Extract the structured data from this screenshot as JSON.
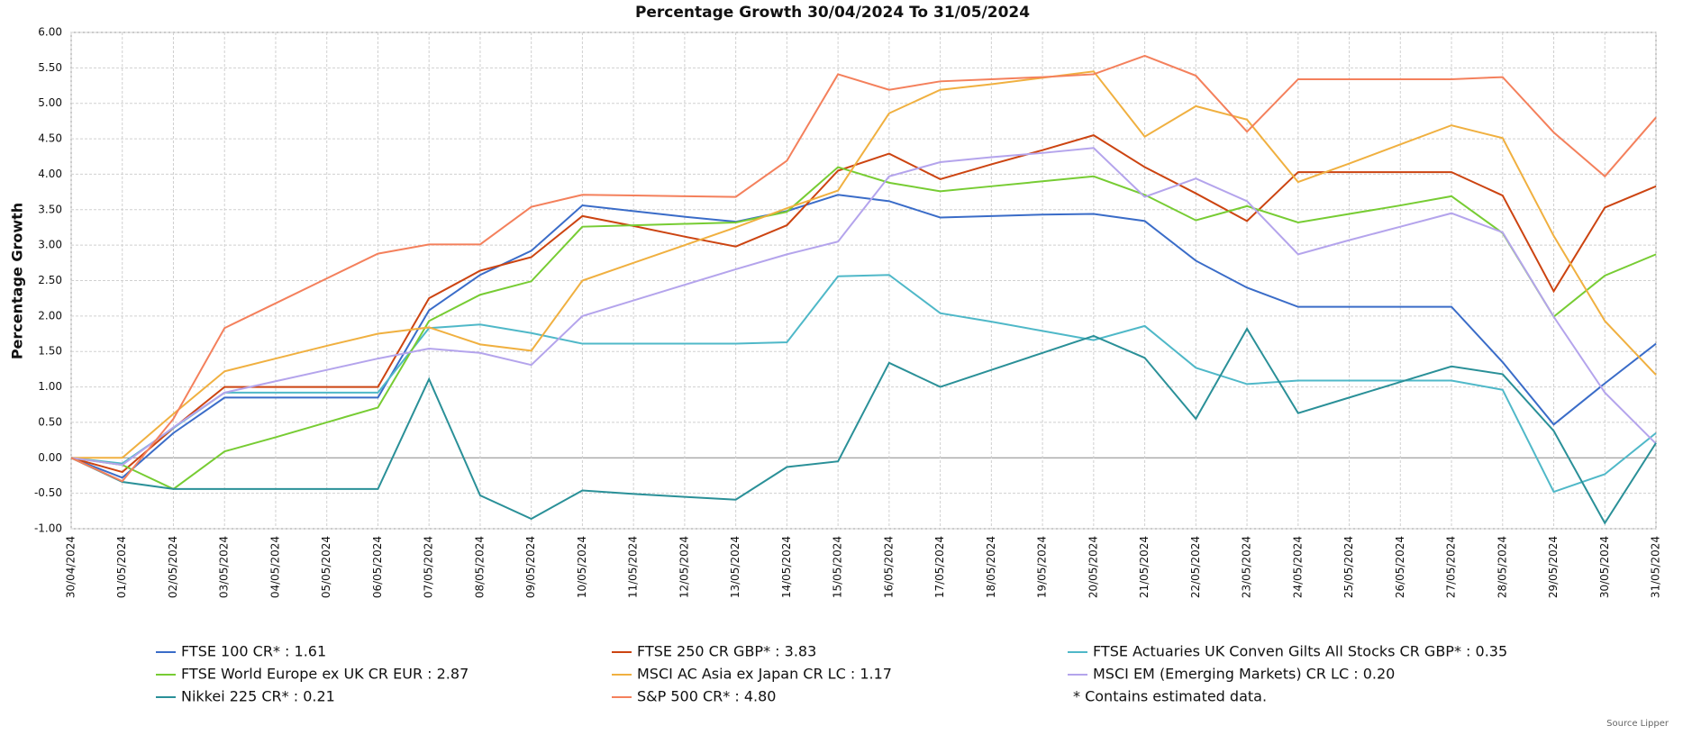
{
  "chart_data": {
    "type": "line",
    "title": "Percentage Growth 30/04/2024 To 31/05/2024",
    "y_label": "Percentage Growth",
    "categories": [
      "30/04/2024",
      "01/05/2024",
      "02/05/2024",
      "03/05/2024",
      "04/05/2024",
      "05/05/2024",
      "06/05/2024",
      "07/05/2024",
      "08/05/2024",
      "09/05/2024",
      "10/05/2024",
      "11/05/2024",
      "12/05/2024",
      "13/05/2024",
      "14/05/2024",
      "15/05/2024",
      "16/05/2024",
      "17/05/2024",
      "18/05/2024",
      "19/05/2024",
      "20/05/2024",
      "21/05/2024",
      "22/05/2024",
      "23/05/2024",
      "24/05/2024",
      "25/05/2024",
      "26/05/2024",
      "27/05/2024",
      "28/05/2024",
      "29/05/2024",
      "30/05/2024",
      "31/05/2024"
    ],
    "series": [
      {
        "name": "FTSE 100 CR* : 1.61",
        "color": "#3a6cc8",
        "values": [
          0,
          -0.28,
          0.35,
          0.85,
          0.85,
          0.85,
          0.85,
          2.08,
          2.58,
          2.92,
          3.56,
          3.48,
          3.4,
          3.33,
          3.48,
          3.71,
          3.62,
          3.39,
          3.41,
          3.43,
          3.44,
          3.34,
          2.78,
          2.4,
          2.13,
          2.13,
          2.13,
          2.13,
          1.35,
          0.47,
          1.05,
          1.61
        ]
      },
      {
        "name": "FTSE 250 CR GBP* : 3.83",
        "color": "#cc4411",
        "values": [
          0,
          -0.2,
          0.42,
          1.0,
          1.0,
          1.0,
          1.0,
          2.25,
          2.64,
          2.83,
          3.41,
          3.27,
          3.12,
          2.98,
          3.28,
          4.05,
          4.29,
          3.93,
          4.14,
          4.34,
          4.55,
          4.1,
          3.73,
          3.34,
          4.03,
          4.03,
          4.03,
          4.03,
          3.7,
          2.35,
          3.53,
          3.83
        ]
      },
      {
        "name": "FTSE Actuaries UK Conven Gilts All Stocks CR GBP* : 0.35",
        "color": "#4fb8c8",
        "values": [
          0,
          -0.08,
          0.42,
          0.92,
          0.92,
          0.92,
          0.92,
          1.83,
          1.88,
          1.76,
          1.61,
          1.61,
          1.61,
          1.61,
          1.63,
          2.56,
          2.58,
          2.04,
          1.92,
          1.79,
          1.66,
          1.86,
          1.27,
          1.04,
          1.09,
          1.09,
          1.09,
          1.09,
          0.96,
          -0.48,
          -0.23,
          0.35
        ]
      },
      {
        "name": "FTSE World Europe ex UK CR EUR : 2.87",
        "color": "#77cc33",
        "values": [
          0,
          -0.1,
          -0.44,
          0.09,
          0.29,
          0.5,
          0.71,
          1.93,
          2.3,
          2.49,
          3.26,
          3.28,
          3.3,
          3.32,
          3.47,
          4.1,
          3.88,
          3.76,
          3.83,
          3.9,
          3.97,
          3.71,
          3.35,
          3.55,
          3.32,
          3.44,
          3.56,
          3.69,
          3.17,
          1.99,
          2.57,
          2.87
        ]
      },
      {
        "name": "MSCI AC Asia ex Japan CR LC : 1.17",
        "color": "#f0b040",
        "values": [
          0,
          0.0,
          0.62,
          1.22,
          1.4,
          1.58,
          1.75,
          1.84,
          1.6,
          1.51,
          2.5,
          2.75,
          3.0,
          3.25,
          3.52,
          3.77,
          4.86,
          5.19,
          5.27,
          5.36,
          5.45,
          4.53,
          4.96,
          4.77,
          3.89,
          4.15,
          4.42,
          4.69,
          4.51,
          3.13,
          1.93,
          1.17
        ]
      },
      {
        "name": "MSCI EM (Emerging Markets) CR LC : 0.20",
        "color": "#b4a4ec",
        "values": [
          0,
          -0.1,
          0.43,
          0.92,
          1.08,
          1.24,
          1.4,
          1.54,
          1.48,
          1.31,
          2.0,
          2.22,
          2.44,
          2.66,
          2.87,
          3.05,
          3.97,
          4.17,
          4.24,
          4.3,
          4.37,
          3.68,
          3.94,
          3.62,
          2.87,
          3.07,
          3.26,
          3.45,
          3.18,
          1.99,
          0.92,
          0.2
        ]
      },
      {
        "name": "Nikkei 225 CR* : 0.21",
        "color": "#2a9098",
        "values": [
          0,
          -0.34,
          -0.44,
          -0.44,
          -0.44,
          -0.44,
          -0.44,
          1.11,
          -0.53,
          -0.86,
          -0.46,
          -0.51,
          -0.55,
          -0.59,
          -0.13,
          -0.05,
          1.34,
          1.0,
          1.24,
          1.48,
          1.72,
          1.41,
          0.55,
          1.82,
          0.63,
          0.85,
          1.07,
          1.29,
          1.18,
          0.38,
          -0.92,
          0.21
        ]
      },
      {
        "name": "S&P 500 CR* : 4.80",
        "color": "#f4805c",
        "values": [
          0,
          -0.33,
          0.55,
          1.83,
          2.18,
          2.53,
          2.88,
          3.01,
          3.01,
          3.54,
          3.71,
          3.7,
          3.69,
          3.68,
          4.19,
          5.41,
          5.19,
          5.31,
          5.34,
          5.37,
          5.41,
          5.67,
          5.39,
          4.6,
          5.34,
          5.34,
          5.34,
          5.34,
          5.37,
          4.59,
          3.97,
          4.8
        ]
      }
    ],
    "ylim": [
      -1,
      6
    ],
    "yticks": [
      {
        "value": -1,
        "label": "-1.00"
      },
      {
        "value": -0.5,
        "label": "-0.50"
      },
      {
        "value": 0,
        "label": "0.00"
      },
      {
        "value": 0.5,
        "label": "0.50"
      },
      {
        "value": 1,
        "label": "1.00"
      },
      {
        "value": 1.5,
        "label": "1.50"
      },
      {
        "value": 2,
        "label": "2.00"
      },
      {
        "value": 2.5,
        "label": "2.50"
      },
      {
        "value": 3,
        "label": "3.00"
      },
      {
        "value": 3.5,
        "label": "3.50"
      },
      {
        "value": 4,
        "label": "4.00"
      },
      {
        "value": 4.5,
        "label": "4.50"
      },
      {
        "value": 5,
        "label": "5.00"
      },
      {
        "value": 5.5,
        "label": "5.50"
      },
      {
        "value": 6,
        "label": "6.00"
      }
    ],
    "grid": true,
    "note": "*  Contains estimated data.",
    "source": "Source Lipper"
  }
}
